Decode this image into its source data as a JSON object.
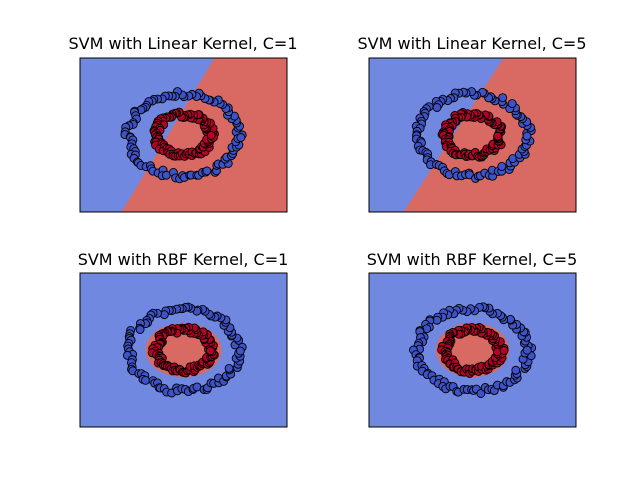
{
  "colors": {
    "class0_region": "#7088e0",
    "class1_region": "#d86a63",
    "class0_point": "#3f53c8",
    "class1_point": "#b40426",
    "point_edge": "#000000",
    "frame": "#000000"
  },
  "chart_data": [
    {
      "type": "scatter",
      "title": "SVM with Linear Kernel, C=1",
      "kernel": "linear",
      "C": 1,
      "xlim": [
        -1.5,
        1.5
      ],
      "ylim": [
        -1.5,
        1.5
      ],
      "axis_ticks": "hidden",
      "grid": false,
      "decision_boundary": {
        "kind": "line",
        "from": [
          -0.9,
          -1.5
        ],
        "to": [
          0.45,
          1.5
        ],
        "left_class": 0,
        "right_class": 1
      },
      "series": [
        {
          "class": 0,
          "shape": "circle",
          "radius": 0.8,
          "n_points": 100
        },
        {
          "class": 1,
          "shape": "circle",
          "radius": 0.4,
          "n_points": 100
        }
      ]
    },
    {
      "type": "scatter",
      "title": "SVM with Linear Kernel, C=5",
      "kernel": "linear",
      "C": 5,
      "xlim": [
        -1.5,
        1.5
      ],
      "ylim": [
        -1.5,
        1.5
      ],
      "axis_ticks": "hidden",
      "grid": false,
      "decision_boundary": {
        "kind": "line",
        "from": [
          -1.0,
          -1.5
        ],
        "to": [
          0.45,
          1.5
        ],
        "left_class": 0,
        "right_class": 1
      },
      "series": [
        {
          "class": 0,
          "shape": "circle",
          "radius": 0.8,
          "n_points": 100
        },
        {
          "class": 1,
          "shape": "circle",
          "radius": 0.4,
          "n_points": 100
        }
      ]
    },
    {
      "type": "scatter",
      "title": "SVM with RBF Kernel, C=1",
      "kernel": "rbf",
      "C": 1,
      "xlim": [
        -1.5,
        1.5
      ],
      "ylim": [
        -1.5,
        1.5
      ],
      "axis_ticks": "hidden",
      "grid": false,
      "decision_boundary": {
        "kind": "ellipse",
        "center": [
          0,
          0
        ],
        "rx": 0.55,
        "ry": 0.53,
        "inside_class": 1,
        "outside_class": 0
      },
      "series": [
        {
          "class": 0,
          "shape": "circle",
          "radius": 0.8,
          "n_points": 100
        },
        {
          "class": 1,
          "shape": "circle",
          "radius": 0.4,
          "n_points": 100
        }
      ]
    },
    {
      "type": "scatter",
      "title": "SVM with RBF Kernel, C=5",
      "kernel": "rbf",
      "C": 5,
      "xlim": [
        -1.5,
        1.5
      ],
      "ylim": [
        -1.5,
        1.5
      ],
      "axis_ticks": "hidden",
      "grid": false,
      "decision_boundary": {
        "kind": "ellipse",
        "center": [
          0,
          0
        ],
        "rx": 0.53,
        "ry": 0.53,
        "inside_class": 1,
        "outside_class": 0
      },
      "series": [
        {
          "class": 0,
          "shape": "circle",
          "radius": 0.8,
          "n_points": 100
        },
        {
          "class": 1,
          "shape": "circle",
          "radius": 0.4,
          "n_points": 100
        }
      ]
    }
  ]
}
